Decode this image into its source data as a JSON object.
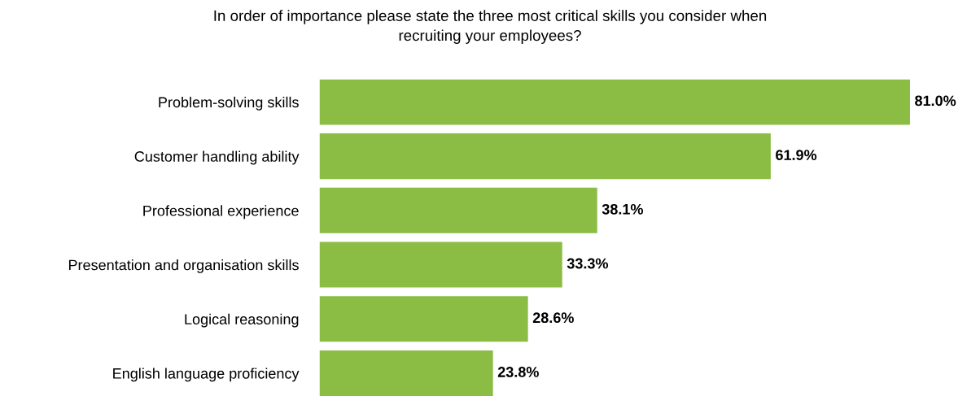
{
  "chart_data": {
    "type": "bar",
    "orientation": "horizontal",
    "title": "In order of importance please state the three most critical skills you consider when\nrecruiting your employees?",
    "categories": [
      "Problem-solving skills",
      "Customer handling ability",
      "Professional experience",
      "Presentation and organisation skills",
      "Logical reasoning",
      "English language proficiency"
    ],
    "values": [
      81.0,
      61.9,
      38.1,
      33.3,
      28.6,
      23.8
    ],
    "value_labels": [
      "81.0%",
      "61.9%",
      "38.1%",
      "33.3%",
      "28.6%",
      "23.8%"
    ],
    "color": "#8bbd45",
    "grid": false,
    "legend": false
  }
}
